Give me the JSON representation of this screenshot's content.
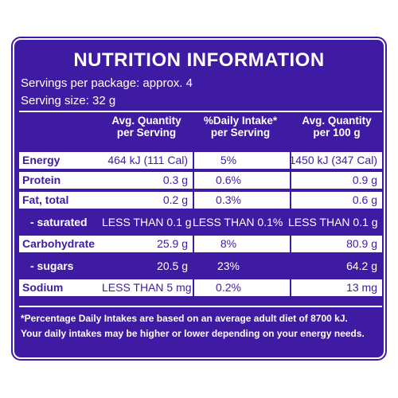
{
  "panel": {
    "title": "NUTRITION INFORMATION",
    "servings_per_package": "Servings per package: approx. 4",
    "serving_size": "Serving size: 32 g"
  },
  "columns": [
    {
      "line1": "Avg. Quantity",
      "line2": "per Serving"
    },
    {
      "line1": "%Daily Intake*",
      "line2": "per Serving"
    },
    {
      "line1": "Avg. Quantity",
      "line2": "per 100 g"
    }
  ],
  "rows": [
    {
      "label": "Energy",
      "per_serving": "464 kJ (111 Cal)",
      "daily_intake": "5%",
      "per_100g": "1450 kJ (347 Cal)",
      "style": "white",
      "sub": false
    },
    {
      "label": "Protein",
      "per_serving": "0.3 g",
      "daily_intake": "0.6%",
      "per_100g": "0.9 g",
      "style": "white",
      "sub": false
    },
    {
      "label": "Fat, total",
      "per_serving": "0.2 g",
      "daily_intake": "0.3%",
      "per_100g": "0.6 g",
      "style": "white",
      "sub": false
    },
    {
      "label": "- saturated",
      "per_serving": "LESS THAN 0.1 g",
      "daily_intake": "LESS THAN 0.1%",
      "per_100g": "LESS THAN 0.1 g",
      "style": "dark",
      "sub": true
    },
    {
      "label": "Carbohydrate",
      "per_serving": "25.9 g",
      "daily_intake": "8%",
      "per_100g": "80.9 g",
      "style": "white",
      "sub": false
    },
    {
      "label": "- sugars",
      "per_serving": "20.5 g",
      "daily_intake": "23%",
      "per_100g": "64.2 g",
      "style": "dark",
      "sub": true
    },
    {
      "label": "Sodium",
      "per_serving": "LESS THAN 5 mg",
      "daily_intake": "0.2%",
      "per_100g": "13 mg",
      "style": "white",
      "sub": false
    }
  ],
  "footnote": {
    "line1": "*Percentage Daily Intakes are based on an average adult diet of 8700 kJ.",
    "line2": "Your daily intakes may be higher or lower depending on your energy needs."
  },
  "colors": {
    "brand_purple": "#3f1ba3",
    "white": "#ffffff"
  }
}
